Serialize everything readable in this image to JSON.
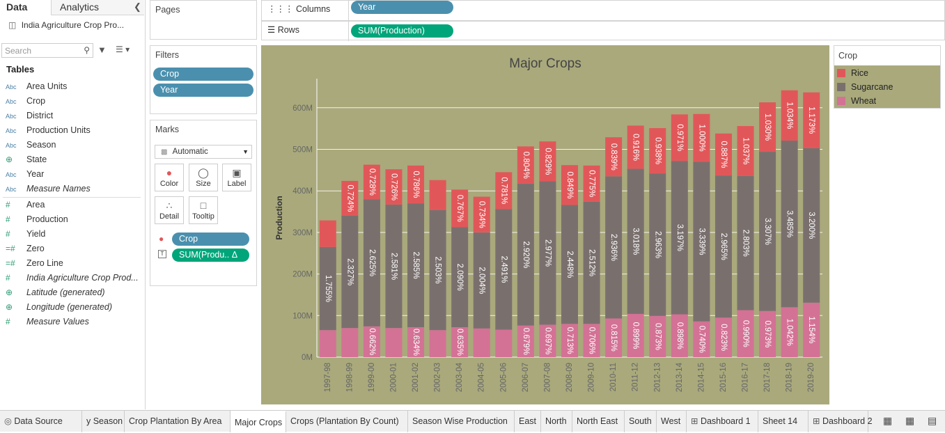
{
  "left_pane": {
    "tab_data": "Data",
    "tab_analytics": "Analytics",
    "datasource": "India Agriculture Crop Pro...",
    "search_placeholder": "Search",
    "tables_title": "Tables",
    "dimensions": [
      {
        "type": "Abc",
        "name": "Area Units"
      },
      {
        "type": "Abc",
        "name": "Crop"
      },
      {
        "type": "Abc",
        "name": "District"
      },
      {
        "type": "Abc",
        "name": "Production Units"
      },
      {
        "type": "Abc",
        "name": "Season"
      },
      {
        "type": "⊕",
        "name": "State"
      },
      {
        "type": "Abc",
        "name": "Year"
      },
      {
        "type": "Abc",
        "name": "Measure Names"
      }
    ],
    "measures": [
      {
        "type": "#",
        "name": "Area"
      },
      {
        "type": "#",
        "name": "Production"
      },
      {
        "type": "#",
        "name": "Yield"
      },
      {
        "type": "=#",
        "name": "Zero"
      },
      {
        "type": "=#",
        "name": "Zero Line"
      },
      {
        "type": "#",
        "name": "India Agriculture Crop Prod..."
      },
      {
        "type": "⊕",
        "name": "Latitude (generated)"
      },
      {
        "type": "⊕",
        "name": "Longitude (generated)"
      },
      {
        "type": "#",
        "name": "Measure Values"
      }
    ]
  },
  "pages": {
    "title": "Pages"
  },
  "filters": {
    "title": "Filters",
    "pills": [
      "Crop",
      "Year"
    ]
  },
  "marks": {
    "title": "Marks",
    "type": "Automatic",
    "buttons": [
      "Color",
      "Size",
      "Label",
      "Detail",
      "Tooltip"
    ],
    "color_pill": "Crop",
    "label_pill": "SUM(Produ..  Δ"
  },
  "columns": {
    "label": "Columns",
    "pill": "Year"
  },
  "rows": {
    "label": "Rows",
    "pill": "SUM(Production)"
  },
  "legend": {
    "title": "Crop",
    "items": [
      {
        "name": "Rice",
        "color": "#e15759"
      },
      {
        "name": "Sugarcane",
        "color": "#79706e"
      },
      {
        "name": "Wheat",
        "color": "#d37295"
      }
    ]
  },
  "chart_data": {
    "type": "bar",
    "stacked": true,
    "title": "Major Crops",
    "ylabel": "Production",
    "ylim": [
      0,
      670
    ],
    "yticks": [
      "0M",
      "100M",
      "200M",
      "300M",
      "400M",
      "500M",
      "600M"
    ],
    "categories": [
      "1997-98",
      "1998-99",
      "1999-00",
      "2000-01",
      "2001-02",
      "2002-03",
      "2003-04",
      "2004-05",
      "2005-06",
      "2006-07",
      "2007-08",
      "2008-09",
      "2009-10",
      "2010-11",
      "2011-12",
      "2012-13",
      "2013-14",
      "2014-15",
      "2015-16",
      "2016-17",
      "2017-18",
      "2018-19",
      "2019-20"
    ],
    "series": [
      {
        "name": "Wheat",
        "color": "#d37295",
        "values": [
          65,
          70,
          74,
          70,
          72,
          65,
          72,
          69,
          66,
          76,
          78,
          80,
          80,
          93,
          104,
          99,
          103,
          86,
          95,
          113,
          111,
          120,
          131
        ],
        "labels": [
          "",
          "",
          "0.662%",
          "",
          "0.634%",
          "",
          "0.635%",
          "",
          "",
          "0.679%",
          "0.697%",
          "0.713%",
          "0.706%",
          "0.815%",
          "0.899%",
          "0.873%",
          "0.898%",
          "0.740%",
          "0.823%",
          "0.990%",
          "0.973%",
          "1.042%",
          "1.154%"
        ]
      },
      {
        "name": "Sugarcane",
        "color": "#79706e",
        "values": [
          200,
          270,
          306,
          297,
          298,
          289,
          241,
          231,
          290,
          341,
          345,
          286,
          294,
          342,
          349,
          343,
          369,
          384,
          342,
          323,
          383,
          401,
          372
        ],
        "labels": [
          "1.755%",
          "2.327%",
          "2.625%",
          "2.581%",
          "2.585%",
          "2.503%",
          "2.090%",
          "2.004%",
          "2.491%",
          "2.920%",
          "2.977%",
          "2.448%",
          "2.512%",
          "2.936%",
          "3.018%",
          "2.963%",
          "3.197%",
          "3.339%",
          "2.965%",
          "2.803%",
          "3.307%",
          "3.485%",
          "3.200%"
        ]
      },
      {
        "name": "Rice",
        "color": "#e15759",
        "values": [
          64,
          84,
          83,
          85,
          91,
          72,
          90,
          86,
          89,
          90,
          96,
          96,
          87,
          94,
          104,
          109,
          112,
          115,
          101,
          120,
          119,
          121,
          134
        ],
        "labels": [
          "",
          "0.724%",
          "0.728%",
          "0.726%",
          "0.786%",
          "",
          "0.767%",
          "0.734%",
          "0.781%",
          "0.804%",
          "0.829%",
          "0.849%",
          "0.775%",
          "0.839%",
          "0.916%",
          "0.938%",
          "0.971%",
          "1.000%",
          "0.887%",
          "1.037%",
          "1.030%",
          "1.034%",
          "1.173%"
        ]
      }
    ],
    "grid": true
  },
  "bottom_tabs": [
    {
      "label": "Data Source",
      "icon": "datasource"
    },
    {
      "label": "y Season",
      "icon": ""
    },
    {
      "label": "Crop Plantation By Area",
      "icon": ""
    },
    {
      "label": "Major Crops",
      "icon": "",
      "active": true
    },
    {
      "label": "Crops (Plantation By Count)",
      "icon": ""
    },
    {
      "label": "Season Wise Production",
      "icon": ""
    },
    {
      "label": "East",
      "icon": ""
    },
    {
      "label": "North",
      "icon": ""
    },
    {
      "label": "North East",
      "icon": ""
    },
    {
      "label": "South",
      "icon": ""
    },
    {
      "label": "West",
      "icon": ""
    },
    {
      "label": "Dashboard 1",
      "icon": "dashboard"
    },
    {
      "label": "Sheet 14",
      "icon": ""
    },
    {
      "label": "Dashboard 2",
      "icon": "dashboard"
    }
  ]
}
